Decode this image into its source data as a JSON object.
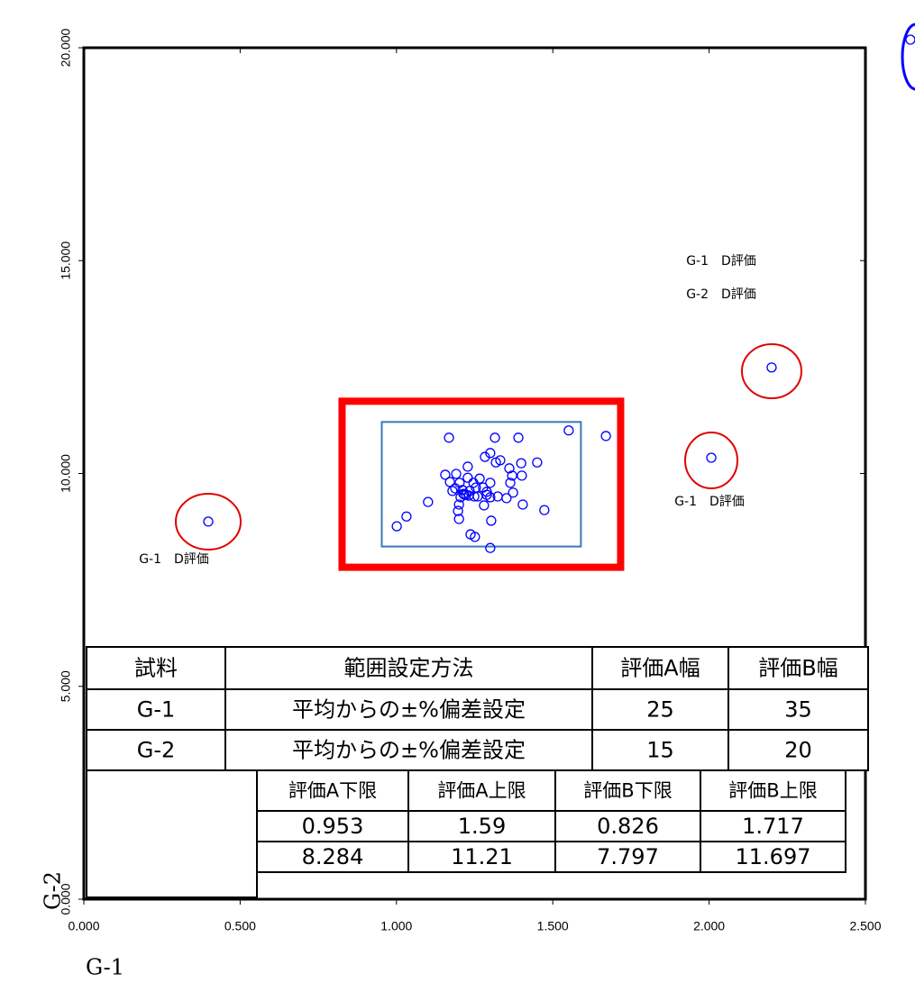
{
  "chart_data": {
    "type": "scatter",
    "x_label": "G-1",
    "y_label": "G-2",
    "color": "#0000ff",
    "xlim": [
      0,
      2.5
    ],
    "ylim": [
      0,
      20
    ],
    "xticks": [
      {
        "value": 0,
        "label": "0.000"
      },
      {
        "value": 0.5,
        "label": "0.500"
      },
      {
        "value": 1,
        "label": "1.000"
      },
      {
        "value": 1.5,
        "label": "1.500"
      },
      {
        "value": 2,
        "label": "2.000"
      },
      {
        "value": 2.5,
        "label": "2.500"
      }
    ],
    "yticks": [
      {
        "value": 0,
        "label": "0.000"
      },
      {
        "value": 5,
        "label": "5.000"
      },
      {
        "value": 10,
        "label": "10.000"
      },
      {
        "value": 15,
        "label": "15.000"
      },
      {
        "value": 20,
        "label": "20.000"
      }
    ],
    "x": [
      0.398,
      2.007,
      2.2,
      2.644,
      1.168,
      1.315,
      1.39,
      1.551,
      1.67,
      1.3,
      1.283,
      1.332,
      1.318,
      1.228,
      1.45,
      1.399,
      1.156,
      1.191,
      1.228,
      1.266,
      1.202,
      1.246,
      1.254,
      1.277,
      1.171,
      1.3,
      1.364,
      1.401,
      1.37,
      1.361,
      1.373,
      1.179,
      1.211,
      1.231,
      1.26,
      1.3,
      1.352,
      1.101,
      1.2,
      1.223,
      1.234,
      1.205,
      1.214,
      1.249,
      1.217,
      1.289,
      1.188,
      1.404,
      1.473,
      1.197,
      1.28,
      1.032,
      1.001,
      1.2,
      1.303,
      1.237,
      1.251,
      1.3,
      1.324,
      1.289
    ],
    "values": [
      8.87,
      10.37,
      12.49,
      20.19,
      10.84,
      10.84,
      10.84,
      11.01,
      10.88,
      10.48,
      10.39,
      10.31,
      10.26,
      10.16,
      10.26,
      10.24,
      9.97,
      9.99,
      9.9,
      9.88,
      9.78,
      9.78,
      9.67,
      9.67,
      9.8,
      9.78,
      9.78,
      9.95,
      9.95,
      10.12,
      9.55,
      9.59,
      9.61,
      9.48,
      9.46,
      9.44,
      9.42,
      9.33,
      9.27,
      9.5,
      9.59,
      9.44,
      9.52,
      9.46,
      9.5,
      9.5,
      9.65,
      9.27,
      9.14,
      9.12,
      9.25,
      8.99,
      8.76,
      8.93,
      8.89,
      8.57,
      8.51,
      8.25,
      9.46,
      9.57
    ],
    "annotations": [
      "G-1　D評価",
      "G-2　D評価",
      "G-1　D評価",
      "G-1　D評価"
    ]
  },
  "table": {
    "header": [
      "試料",
      "範囲設定方法",
      "評価A幅",
      "評価B幅"
    ],
    "rows": [
      [
        "G-1",
        "平均からの±%偏差設定",
        25,
        35
      ],
      [
        "G-2",
        "平均からの±%偏差設定",
        15,
        20
      ]
    ]
  },
  "limits": {
    "header": [
      "評価A下限",
      "評価A上限",
      "評価B下限",
      "評価B上限"
    ],
    "rows": [
      [
        0.953,
        1.59,
        0.826,
        1.717
      ],
      [
        8.284,
        11.21,
        7.797,
        11.697
      ]
    ]
  }
}
